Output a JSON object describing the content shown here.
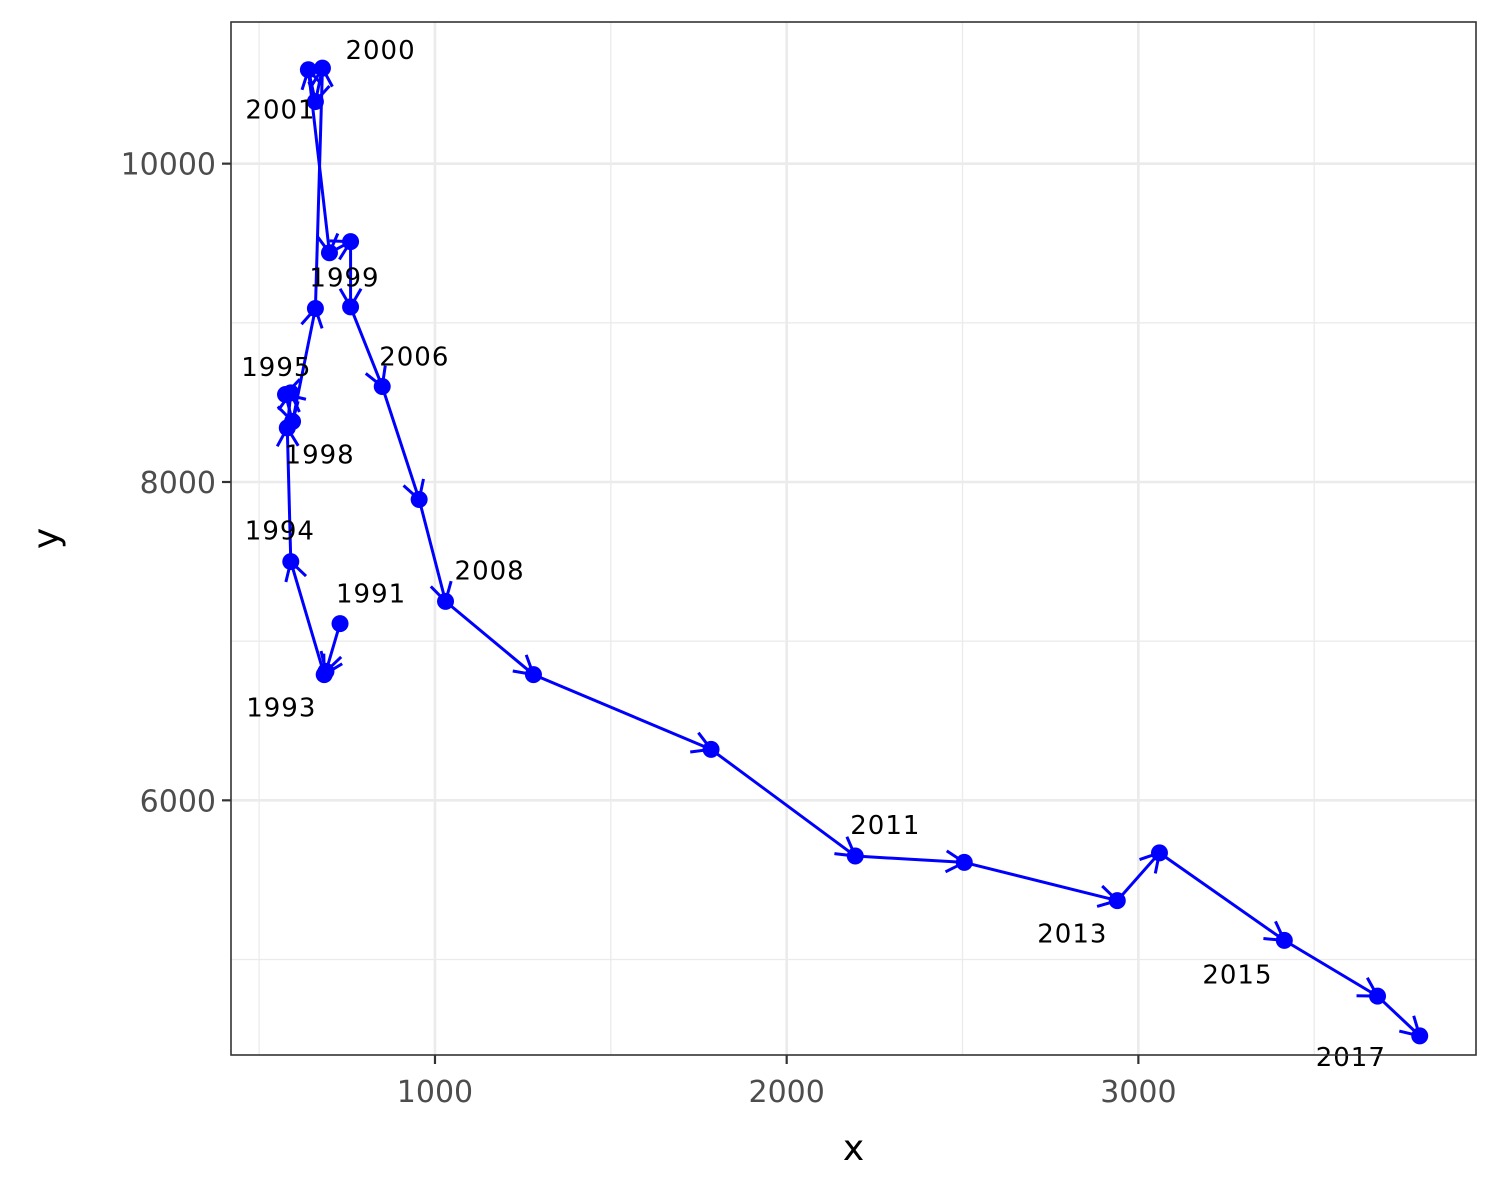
{
  "chart_data": {
    "type": "line",
    "xlabel": "x",
    "ylabel": "y",
    "xlim": [
      420,
      3960
    ],
    "ylim": [
      4400,
      10890
    ],
    "x_ticks": [
      1000,
      2000,
      3000
    ],
    "x_tick_labels": [
      "1000",
      "2000",
      "3000"
    ],
    "y_ticks": [
      6000,
      8000,
      10000
    ],
    "y_tick_labels": [
      "6000",
      "8000",
      "10000"
    ],
    "x_minor_ticks": [
      500,
      1500,
      2500,
      3500
    ],
    "y_minor_ticks": [
      5000,
      7000,
      9000
    ],
    "grid": true,
    "series_color": "#0000ff",
    "points": [
      {
        "x": 730,
        "y": 7110,
        "label": "1991"
      },
      {
        "x": 690,
        "y": 6810,
        "label": ""
      },
      {
        "x": 685,
        "y": 6790,
        "label": "1993"
      },
      {
        "x": 590,
        "y": 7500,
        "label": "1994"
      },
      {
        "x": 580,
        "y": 8340,
        "label": "1995"
      },
      {
        "x": 590,
        "y": 8560,
        "label": ""
      },
      {
        "x": 575,
        "y": 8550,
        "label": ""
      },
      {
        "x": 595,
        "y": 8380,
        "label": "1998"
      },
      {
        "x": 660,
        "y": 9090,
        "label": "1999"
      },
      {
        "x": 680,
        "y": 10600,
        "label": "2000"
      },
      {
        "x": 660,
        "y": 10390,
        "label": "2001"
      },
      {
        "x": 640,
        "y": 10590,
        "label": ""
      },
      {
        "x": 700,
        "y": 9440,
        "label": ""
      },
      {
        "x": 760,
        "y": 9510,
        "label": ""
      },
      {
        "x": 760,
        "y": 9100,
        "label": ""
      },
      {
        "x": 850,
        "y": 8600,
        "label": "2006"
      },
      {
        "x": 955,
        "y": 7890,
        "label": ""
      },
      {
        "x": 1030,
        "y": 7250,
        "label": "2008"
      },
      {
        "x": 1280,
        "y": 6790,
        "label": ""
      },
      {
        "x": 1785,
        "y": 6320,
        "label": ""
      },
      {
        "x": 2195,
        "y": 5650,
        "label": "2011"
      },
      {
        "x": 2505,
        "y": 5610,
        "label": ""
      },
      {
        "x": 2940,
        "y": 5370,
        "label": "2013"
      },
      {
        "x": 3060,
        "y": 5670,
        "label": ""
      },
      {
        "x": 3415,
        "y": 5120,
        "label": "2015"
      },
      {
        "x": 3680,
        "y": 4770,
        "label": ""
      },
      {
        "x": 3800,
        "y": 4520,
        "label": "2017"
      }
    ]
  }
}
